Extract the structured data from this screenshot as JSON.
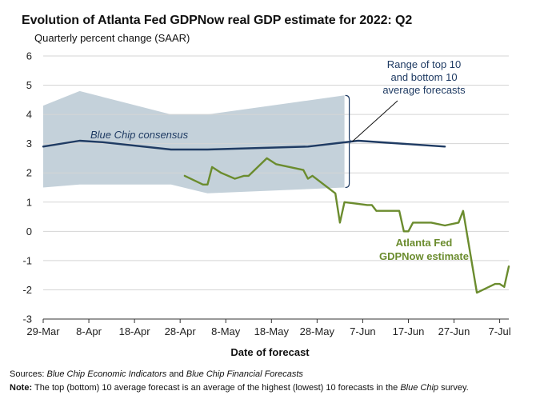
{
  "title": "Evolution of Atlanta Fed GDPNow real GDP estimate for 2022: Q2",
  "subtitle": "Quarterly percent change (SAAR)",
  "source": {
    "label": "Sources:",
    "text_parts": [
      "Blue Chip Economic Indicators",
      " and ",
      "Blue Chip Financial Forecasts"
    ]
  },
  "note": {
    "label": "Note:",
    "text_parts": [
      "The top (bottom) 10 average forecast is an average of the highest (lowest) 10 forecasts in the ",
      "Blue Chip",
      " survey."
    ]
  },
  "colors": {
    "band": "#c4d1da",
    "consensus": "#1f3b63",
    "gdpnow": "#6b8c2e",
    "axis": "#333333",
    "annotation": "#1f3b63"
  },
  "chart_data": {
    "type": "line",
    "xlabel": "Date of forecast",
    "ylabel": "",
    "ylim": [
      -3,
      6
    ],
    "xlim": [
      "2022-03-29",
      "2022-07-09"
    ],
    "yticks": [
      6,
      5,
      4,
      3,
      2,
      1,
      0,
      -1,
      -2,
      -3
    ],
    "xticks": [
      {
        "label": "29-Mar",
        "date": "2022-03-29"
      },
      {
        "label": "8-Apr",
        "date": "2022-04-08"
      },
      {
        "label": "18-Apr",
        "date": "2022-04-18"
      },
      {
        "label": "28-Apr",
        "date": "2022-04-28"
      },
      {
        "label": "8-May",
        "date": "2022-05-08"
      },
      {
        "label": "18-May",
        "date": "2022-05-18"
      },
      {
        "label": "28-May",
        "date": "2022-05-28"
      },
      {
        "label": "7-Jun",
        "date": "2022-06-07"
      },
      {
        "label": "17-Jun",
        "date": "2022-06-17"
      },
      {
        "label": "27-Jun",
        "date": "2022-06-27"
      },
      {
        "label": "7-Jul",
        "date": "2022-07-07"
      }
    ],
    "grid": "horizontal",
    "band": {
      "name": "Range of top 10 and bottom 10 average forecasts",
      "points": [
        {
          "x": "2022-03-29",
          "low": 1.5,
          "high": 4.3
        },
        {
          "x": "2022-04-06",
          "low": 1.6,
          "high": 4.8
        },
        {
          "x": "2022-04-11",
          "low": 1.6,
          "high": 4.6
        },
        {
          "x": "2022-04-26",
          "low": 1.6,
          "high": 4.0
        },
        {
          "x": "2022-05-04",
          "low": 1.3,
          "high": 4.0
        },
        {
          "x": "2022-06-03",
          "low": 1.5,
          "high": 4.65
        }
      ]
    },
    "series": [
      {
        "name": "Blue Chip consensus",
        "points": [
          {
            "x": "2022-03-29",
            "y": 2.9
          },
          {
            "x": "2022-04-06",
            "y": 3.1
          },
          {
            "x": "2022-04-11",
            "y": 3.05
          },
          {
            "x": "2022-04-26",
            "y": 2.8
          },
          {
            "x": "2022-05-04",
            "y": 2.8
          },
          {
            "x": "2022-05-26",
            "y": 2.9
          },
          {
            "x": "2022-06-06",
            "y": 3.1
          },
          {
            "x": "2022-06-25",
            "y": 2.9
          }
        ]
      },
      {
        "name": "Atlanta Fed GDPNow estimate",
        "points": [
          {
            "x": "2022-04-29",
            "y": 1.9
          },
          {
            "x": "2022-05-03",
            "y": 1.6
          },
          {
            "x": "2022-05-04",
            "y": 1.6
          },
          {
            "x": "2022-05-05",
            "y": 2.2
          },
          {
            "x": "2022-05-07",
            "y": 2.0
          },
          {
            "x": "2022-05-10",
            "y": 1.8
          },
          {
            "x": "2022-05-12",
            "y": 1.9
          },
          {
            "x": "2022-05-13",
            "y": 1.9
          },
          {
            "x": "2022-05-17",
            "y": 2.5
          },
          {
            "x": "2022-05-19",
            "y": 2.3
          },
          {
            "x": "2022-05-25",
            "y": 2.1
          },
          {
            "x": "2022-05-26",
            "y": 1.8
          },
          {
            "x": "2022-05-27",
            "y": 1.9
          },
          {
            "x": "2022-06-01",
            "y": 1.3
          },
          {
            "x": "2022-06-02",
            "y": 0.3
          },
          {
            "x": "2022-06-03",
            "y": 1.0
          },
          {
            "x": "2022-06-08",
            "y": 0.9
          },
          {
            "x": "2022-06-09",
            "y": 0.9
          },
          {
            "x": "2022-06-10",
            "y": 0.7
          },
          {
            "x": "2022-06-15",
            "y": 0.7
          },
          {
            "x": "2022-06-16",
            "y": 0.0
          },
          {
            "x": "2022-06-17",
            "y": 0.0
          },
          {
            "x": "2022-06-18",
            "y": 0.3
          },
          {
            "x": "2022-06-22",
            "y": 0.3
          },
          {
            "x": "2022-06-25",
            "y": 0.2
          },
          {
            "x": "2022-06-28",
            "y": 0.3
          },
          {
            "x": "2022-06-29",
            "y": 0.7
          },
          {
            "x": "2022-07-02",
            "y": -2.1
          },
          {
            "x": "2022-07-06",
            "y": -1.8
          },
          {
            "x": "2022-07-07",
            "y": -1.8
          },
          {
            "x": "2022-07-08",
            "y": -1.9
          },
          {
            "x": "2022-07-09",
            "y": -1.2
          }
        ]
      }
    ],
    "annotations": [
      {
        "name": "band-label",
        "lines": [
          "Range of top 10",
          "and bottom 10",
          "average forecasts"
        ]
      },
      {
        "name": "consensus-label",
        "lines": [
          "Blue Chip consensus"
        ]
      },
      {
        "name": "gdpnow-label",
        "lines": [
          "Atlanta Fed",
          "GDPNow estimate"
        ]
      }
    ]
  }
}
